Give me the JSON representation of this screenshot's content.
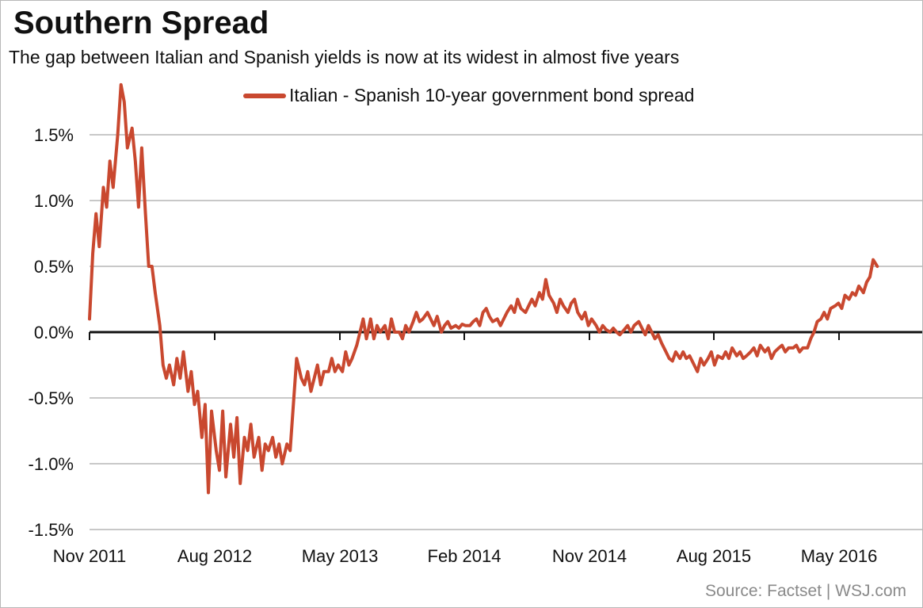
{
  "chart_data": {
    "type": "line",
    "title": "Southern Spread",
    "subtitle": "The gap between Italian and Spanish yields is now at its widest in almost five years",
    "source": "Source: Factset  |  WSJ.com",
    "xlabel": "",
    "ylabel": "",
    "x_ticks": [
      "Nov 2011",
      "Aug 2012",
      "May 2013",
      "Feb 2014",
      "Nov 2014",
      "Aug 2015",
      "May 2016"
    ],
    "x_range": [
      "2011-11",
      "2016-10"
    ],
    "y_ticks": [
      "1.5%",
      "1.0%",
      "0.5%",
      "0.0%",
      "-0.5%",
      "-1.0%",
      "-1.5%"
    ],
    "y_tick_values": [
      1.5,
      1.0,
      0.5,
      0.0,
      -0.5,
      -1.0,
      -1.5
    ],
    "ylim": [
      -1.5,
      1.9
    ],
    "grid": true,
    "legend_placement": "top-center",
    "series": [
      {
        "name": "Italian - Spanish 10-year government bond spread",
        "color": "#c9482f",
        "points": [
          [
            "2011-11-01",
            0.1
          ],
          [
            "2011-11-08",
            0.6
          ],
          [
            "2011-11-15",
            0.9
          ],
          [
            "2011-11-22",
            0.65
          ],
          [
            "2011-12-01",
            1.1
          ],
          [
            "2011-12-08",
            0.95
          ],
          [
            "2011-12-15",
            1.3
          ],
          [
            "2011-12-22",
            1.1
          ],
          [
            "2012-01-01",
            1.5
          ],
          [
            "2012-01-08",
            1.88
          ],
          [
            "2012-01-15",
            1.75
          ],
          [
            "2012-01-22",
            1.4
          ],
          [
            "2012-02-01",
            1.55
          ],
          [
            "2012-02-08",
            1.3
          ],
          [
            "2012-02-15",
            0.95
          ],
          [
            "2012-02-22",
            1.4
          ],
          [
            "2012-03-01",
            0.9
          ],
          [
            "2012-03-08",
            0.5
          ],
          [
            "2012-03-15",
            0.5
          ],
          [
            "2012-03-22",
            0.3
          ],
          [
            "2012-04-01",
            0.05
          ],
          [
            "2012-04-08",
            -0.25
          ],
          [
            "2012-04-15",
            -0.35
          ],
          [
            "2012-04-22",
            -0.25
          ],
          [
            "2012-05-01",
            -0.4
          ],
          [
            "2012-05-08",
            -0.2
          ],
          [
            "2012-05-15",
            -0.35
          ],
          [
            "2012-05-22",
            -0.15
          ],
          [
            "2012-06-01",
            -0.45
          ],
          [
            "2012-06-08",
            -0.3
          ],
          [
            "2012-06-15",
            -0.55
          ],
          [
            "2012-06-22",
            -0.45
          ],
          [
            "2012-07-01",
            -0.8
          ],
          [
            "2012-07-08",
            -0.55
          ],
          [
            "2012-07-15",
            -1.22
          ],
          [
            "2012-07-22",
            -0.6
          ],
          [
            "2012-08-01",
            -0.9
          ],
          [
            "2012-08-08",
            -1.05
          ],
          [
            "2012-08-15",
            -0.6
          ],
          [
            "2012-08-22",
            -1.1
          ],
          [
            "2012-09-01",
            -0.7
          ],
          [
            "2012-09-08",
            -0.95
          ],
          [
            "2012-09-15",
            -0.65
          ],
          [
            "2012-09-22",
            -1.15
          ],
          [
            "2012-10-01",
            -0.8
          ],
          [
            "2012-10-08",
            -0.9
          ],
          [
            "2012-10-15",
            -0.7
          ],
          [
            "2012-10-22",
            -0.95
          ],
          [
            "2012-11-01",
            -0.8
          ],
          [
            "2012-11-08",
            -1.05
          ],
          [
            "2012-11-15",
            -0.85
          ],
          [
            "2012-11-22",
            -0.9
          ],
          [
            "2012-12-01",
            -0.8
          ],
          [
            "2012-12-08",
            -0.95
          ],
          [
            "2012-12-15",
            -0.85
          ],
          [
            "2012-12-22",
            -1.0
          ],
          [
            "2013-01-01",
            -0.85
          ],
          [
            "2013-01-08",
            -0.9
          ],
          [
            "2013-01-15",
            -0.55
          ],
          [
            "2013-01-22",
            -0.2
          ],
          [
            "2013-02-01",
            -0.35
          ],
          [
            "2013-02-08",
            -0.4
          ],
          [
            "2013-02-15",
            -0.3
          ],
          [
            "2013-02-22",
            -0.45
          ],
          [
            "2013-03-01",
            -0.35
          ],
          [
            "2013-03-08",
            -0.25
          ],
          [
            "2013-03-15",
            -0.4
          ],
          [
            "2013-03-22",
            -0.3
          ],
          [
            "2013-04-01",
            -0.3
          ],
          [
            "2013-04-08",
            -0.2
          ],
          [
            "2013-04-15",
            -0.3
          ],
          [
            "2013-04-22",
            -0.25
          ],
          [
            "2013-05-01",
            -0.3
          ],
          [
            "2013-05-08",
            -0.15
          ],
          [
            "2013-05-15",
            -0.25
          ],
          [
            "2013-05-22",
            -0.2
          ],
          [
            "2013-06-01",
            -0.1
          ],
          [
            "2013-06-08",
            0.0
          ],
          [
            "2013-06-15",
            0.1
          ],
          [
            "2013-06-22",
            -0.05
          ],
          [
            "2013-07-01",
            0.1
          ],
          [
            "2013-07-08",
            -0.05
          ],
          [
            "2013-07-15",
            0.05
          ],
          [
            "2013-07-22",
            0.0
          ],
          [
            "2013-08-01",
            0.05
          ],
          [
            "2013-08-08",
            -0.05
          ],
          [
            "2013-08-15",
            0.1
          ],
          [
            "2013-08-22",
            0.0
          ],
          [
            "2013-09-01",
            0.0
          ],
          [
            "2013-09-08",
            -0.05
          ],
          [
            "2013-09-15",
            0.05
          ],
          [
            "2013-09-22",
            0.0
          ],
          [
            "2013-10-01",
            0.08
          ],
          [
            "2013-10-08",
            0.15
          ],
          [
            "2013-10-15",
            0.08
          ],
          [
            "2013-10-22",
            0.1
          ],
          [
            "2013-11-01",
            0.15
          ],
          [
            "2013-11-08",
            0.1
          ],
          [
            "2013-11-15",
            0.05
          ],
          [
            "2013-11-22",
            0.12
          ],
          [
            "2013-12-01",
            0.0
          ],
          [
            "2013-12-08",
            0.05
          ],
          [
            "2013-12-15",
            0.08
          ],
          [
            "2013-12-22",
            0.03
          ],
          [
            "2014-01-01",
            0.05
          ],
          [
            "2014-01-08",
            0.03
          ],
          [
            "2014-01-15",
            0.06
          ],
          [
            "2014-01-22",
            0.05
          ],
          [
            "2014-02-01",
            0.05
          ],
          [
            "2014-02-08",
            0.08
          ],
          [
            "2014-02-15",
            0.1
          ],
          [
            "2014-02-22",
            0.05
          ],
          [
            "2014-03-01",
            0.15
          ],
          [
            "2014-03-08",
            0.18
          ],
          [
            "2014-03-15",
            0.12
          ],
          [
            "2014-03-22",
            0.08
          ],
          [
            "2014-04-01",
            0.1
          ],
          [
            "2014-04-08",
            0.05
          ],
          [
            "2014-04-15",
            0.1
          ],
          [
            "2014-04-22",
            0.15
          ],
          [
            "2014-05-01",
            0.2
          ],
          [
            "2014-05-08",
            0.15
          ],
          [
            "2014-05-15",
            0.25
          ],
          [
            "2014-05-22",
            0.18
          ],
          [
            "2014-06-01",
            0.15
          ],
          [
            "2014-06-08",
            0.2
          ],
          [
            "2014-06-15",
            0.25
          ],
          [
            "2014-06-22",
            0.2
          ],
          [
            "2014-07-01",
            0.3
          ],
          [
            "2014-07-08",
            0.25
          ],
          [
            "2014-07-15",
            0.4
          ],
          [
            "2014-07-22",
            0.28
          ],
          [
            "2014-08-01",
            0.22
          ],
          [
            "2014-08-08",
            0.15
          ],
          [
            "2014-08-15",
            0.25
          ],
          [
            "2014-08-22",
            0.2
          ],
          [
            "2014-09-01",
            0.15
          ],
          [
            "2014-09-08",
            0.22
          ],
          [
            "2014-09-15",
            0.25
          ],
          [
            "2014-09-22",
            0.15
          ],
          [
            "2014-10-01",
            0.1
          ],
          [
            "2014-10-08",
            0.15
          ],
          [
            "2014-10-15",
            0.05
          ],
          [
            "2014-10-22",
            0.1
          ],
          [
            "2014-11-01",
            0.05
          ],
          [
            "2014-11-08",
            0.0
          ],
          [
            "2014-11-15",
            0.05
          ],
          [
            "2014-11-22",
            0.02
          ],
          [
            "2014-12-01",
            0.0
          ],
          [
            "2014-12-08",
            0.03
          ],
          [
            "2014-12-15",
            0.0
          ],
          [
            "2014-12-22",
            -0.02
          ],
          [
            "2015-01-01",
            0.02
          ],
          [
            "2015-01-08",
            0.05
          ],
          [
            "2015-01-15",
            0.0
          ],
          [
            "2015-01-22",
            0.05
          ],
          [
            "2015-02-01",
            0.08
          ],
          [
            "2015-02-08",
            0.03
          ],
          [
            "2015-02-15",
            -0.02
          ],
          [
            "2015-02-22",
            0.05
          ],
          [
            "2015-03-01",
            0.0
          ],
          [
            "2015-03-08",
            -0.05
          ],
          [
            "2015-03-15",
            -0.02
          ],
          [
            "2015-03-22",
            -0.08
          ],
          [
            "2015-04-01",
            -0.15
          ],
          [
            "2015-04-08",
            -0.2
          ],
          [
            "2015-04-15",
            -0.22
          ],
          [
            "2015-04-22",
            -0.15
          ],
          [
            "2015-05-01",
            -0.2
          ],
          [
            "2015-05-08",
            -0.15
          ],
          [
            "2015-05-15",
            -0.2
          ],
          [
            "2015-05-22",
            -0.18
          ],
          [
            "2015-06-01",
            -0.25
          ],
          [
            "2015-06-08",
            -0.3
          ],
          [
            "2015-06-15",
            -0.2
          ],
          [
            "2015-06-22",
            -0.25
          ],
          [
            "2015-07-01",
            -0.2
          ],
          [
            "2015-07-08",
            -0.15
          ],
          [
            "2015-07-15",
            -0.25
          ],
          [
            "2015-07-22",
            -0.18
          ],
          [
            "2015-08-01",
            -0.2
          ],
          [
            "2015-08-08",
            -0.15
          ],
          [
            "2015-08-15",
            -0.2
          ],
          [
            "2015-08-22",
            -0.12
          ],
          [
            "2015-09-01",
            -0.18
          ],
          [
            "2015-09-08",
            -0.15
          ],
          [
            "2015-09-15",
            -0.2
          ],
          [
            "2015-09-22",
            -0.18
          ],
          [
            "2015-10-01",
            -0.15
          ],
          [
            "2015-10-08",
            -0.12
          ],
          [
            "2015-10-15",
            -0.18
          ],
          [
            "2015-10-22",
            -0.1
          ],
          [
            "2015-11-01",
            -0.15
          ],
          [
            "2015-11-08",
            -0.12
          ],
          [
            "2015-11-15",
            -0.2
          ],
          [
            "2015-11-22",
            -0.15
          ],
          [
            "2015-12-01",
            -0.12
          ],
          [
            "2015-12-08",
            -0.1
          ],
          [
            "2015-12-15",
            -0.15
          ],
          [
            "2015-12-22",
            -0.12
          ],
          [
            "2016-01-01",
            -0.12
          ],
          [
            "2016-01-08",
            -0.1
          ],
          [
            "2016-01-15",
            -0.15
          ],
          [
            "2016-01-22",
            -0.12
          ],
          [
            "2016-02-01",
            -0.12
          ],
          [
            "2016-02-08",
            -0.05
          ],
          [
            "2016-02-15",
            0.0
          ],
          [
            "2016-02-22",
            0.08
          ],
          [
            "2016-03-01",
            0.1
          ],
          [
            "2016-03-08",
            0.15
          ],
          [
            "2016-03-15",
            0.1
          ],
          [
            "2016-03-22",
            0.18
          ],
          [
            "2016-04-01",
            0.2
          ],
          [
            "2016-04-08",
            0.22
          ],
          [
            "2016-04-15",
            0.18
          ],
          [
            "2016-04-22",
            0.28
          ],
          [
            "2016-05-01",
            0.25
          ],
          [
            "2016-05-08",
            0.3
          ],
          [
            "2016-05-15",
            0.28
          ],
          [
            "2016-05-22",
            0.35
          ],
          [
            "2016-06-01",
            0.3
          ],
          [
            "2016-06-08",
            0.38
          ],
          [
            "2016-06-15",
            0.42
          ],
          [
            "2016-06-22",
            0.55
          ],
          [
            "2016-07-01",
            0.5
          ]
        ]
      }
    ]
  }
}
